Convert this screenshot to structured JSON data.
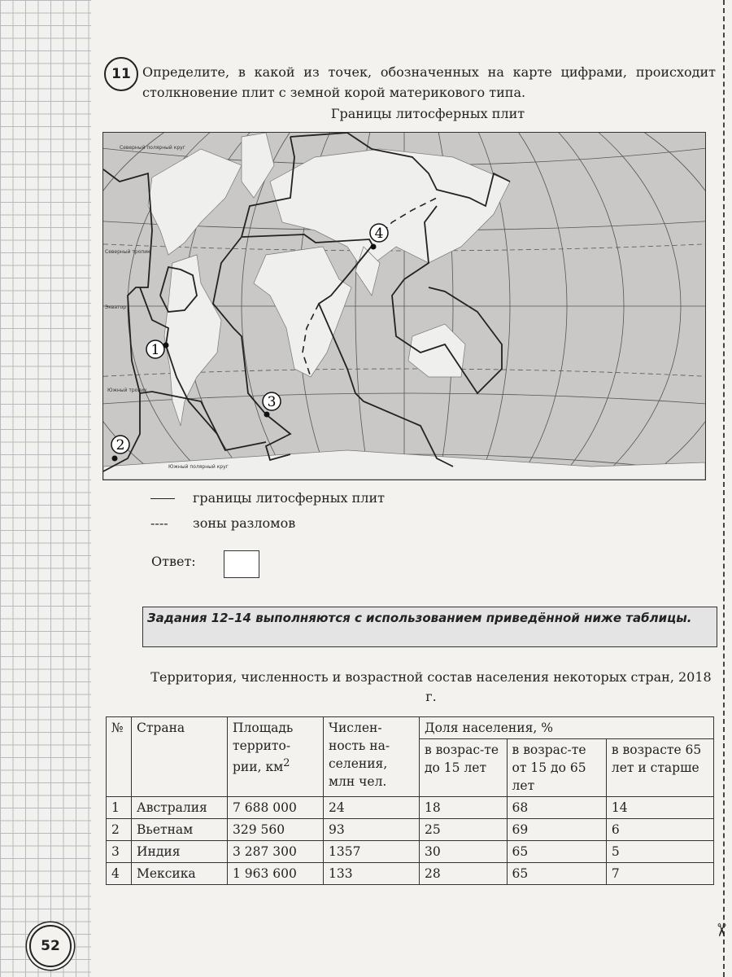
{
  "question": {
    "number": "11",
    "text": "Определите, в какой из точек, обозначенных на карте цифрами, происходит столкновение плит с земной корой материкового типа."
  },
  "map": {
    "title": "Границы литосферных плит",
    "points": [
      "1",
      "2",
      "3",
      "4"
    ],
    "labels": {
      "equator": "Экватор",
      "north_tropic": "Северный тропик",
      "south_tropic": "Южный тропик",
      "south_polar_circle": "Южный полярный круг",
      "north_polar_circle": "Северный полярный круг"
    }
  },
  "legend": {
    "solid": "границы литосферных плит",
    "dashed": "зоны разломов",
    "dashed_symbol": "----"
  },
  "answer": {
    "label": "Ответ:",
    "value": ""
  },
  "banner": "Задания 12–14 выполняются с использованием приведённой ниже таблицы.",
  "table": {
    "title": "Территория, численность и возрастной состав населения некоторых стран, 2018 г.",
    "headers": {
      "num": "№",
      "country": "Страна",
      "area": "Площадь террито-рии, км",
      "area_sup": "2",
      "population": "Числен-ность на-селения, млн чел.",
      "share": "Доля населения, %",
      "under15": "в возрас-те до 15 лет",
      "from15to65": "в возрас-те от 15 до 65 лет",
      "over65": "в возрасте 65 лет и старше"
    },
    "rows": [
      [
        "1",
        "Австралия",
        "7 688 000",
        "24",
        "18",
        "68",
        "14"
      ],
      [
        "2",
        "Вьетнам",
        "329 560",
        "93",
        "25",
        "69",
        "6"
      ],
      [
        "3",
        "Индия",
        "3 287 300",
        "1357",
        "30",
        "65",
        "5"
      ],
      [
        "4",
        "Мексика",
        "1 963 600",
        "133",
        "28",
        "65",
        "7"
      ]
    ]
  },
  "page_number": "52"
}
